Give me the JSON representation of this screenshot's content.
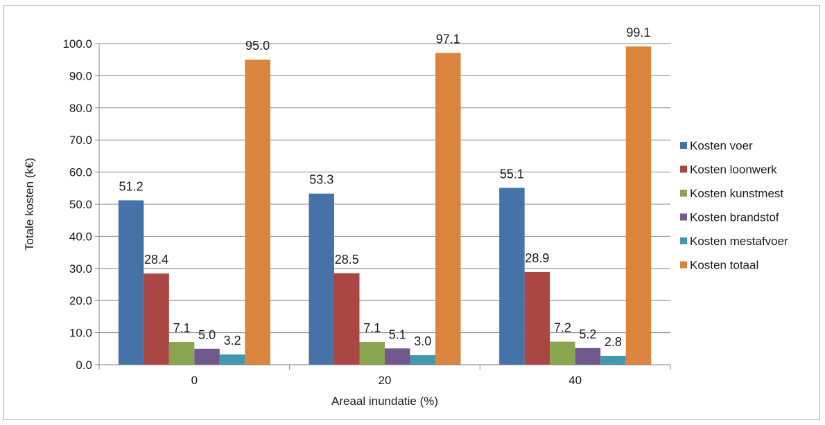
{
  "chart_data": {
    "type": "bar",
    "xlabel": "Areaal inundatie (%)",
    "ylabel": "Totale kosten (k€)",
    "categories": [
      "0",
      "20",
      "40"
    ],
    "ylim": [
      0,
      100
    ],
    "ytick_step": 10,
    "ytick_labels": [
      "0.0",
      "10.0",
      "20.0",
      "30.0",
      "40.0",
      "50.0",
      "60.0",
      "70.0",
      "80.0",
      "90.0",
      "100.0"
    ],
    "grid": true,
    "legend_position": "right",
    "series": [
      {
        "name": "Kosten voer",
        "color": "#4572a7",
        "values": [
          51.2,
          53.3,
          55.1
        ],
        "labels": [
          "51.2",
          "53.3",
          "55.1"
        ]
      },
      {
        "name": "Kosten loonwerk",
        "color": "#aa4643",
        "values": [
          28.4,
          28.5,
          28.9
        ],
        "labels": [
          "28.4",
          "28.5",
          "28.9"
        ]
      },
      {
        "name": "Kosten kunstmest",
        "color": "#89a54e",
        "values": [
          7.1,
          7.1,
          7.2
        ],
        "labels": [
          "7.1",
          "7.1",
          "7.2"
        ]
      },
      {
        "name": "Kosten brandstof",
        "color": "#71588f",
        "values": [
          5.0,
          5.1,
          5.2
        ],
        "labels": [
          "5.0",
          "5.1",
          "5.2"
        ]
      },
      {
        "name": "Kosten mestafvoer",
        "color": "#4198af",
        "values": [
          3.2,
          3.0,
          2.8
        ],
        "labels": [
          "3.2",
          "3.0",
          "2.8"
        ]
      },
      {
        "name": "Kosten totaal",
        "color": "#db843d",
        "values": [
          95.0,
          97.1,
          99.1
        ],
        "labels": [
          "95.0",
          "97.1",
          "99.1"
        ]
      }
    ]
  }
}
